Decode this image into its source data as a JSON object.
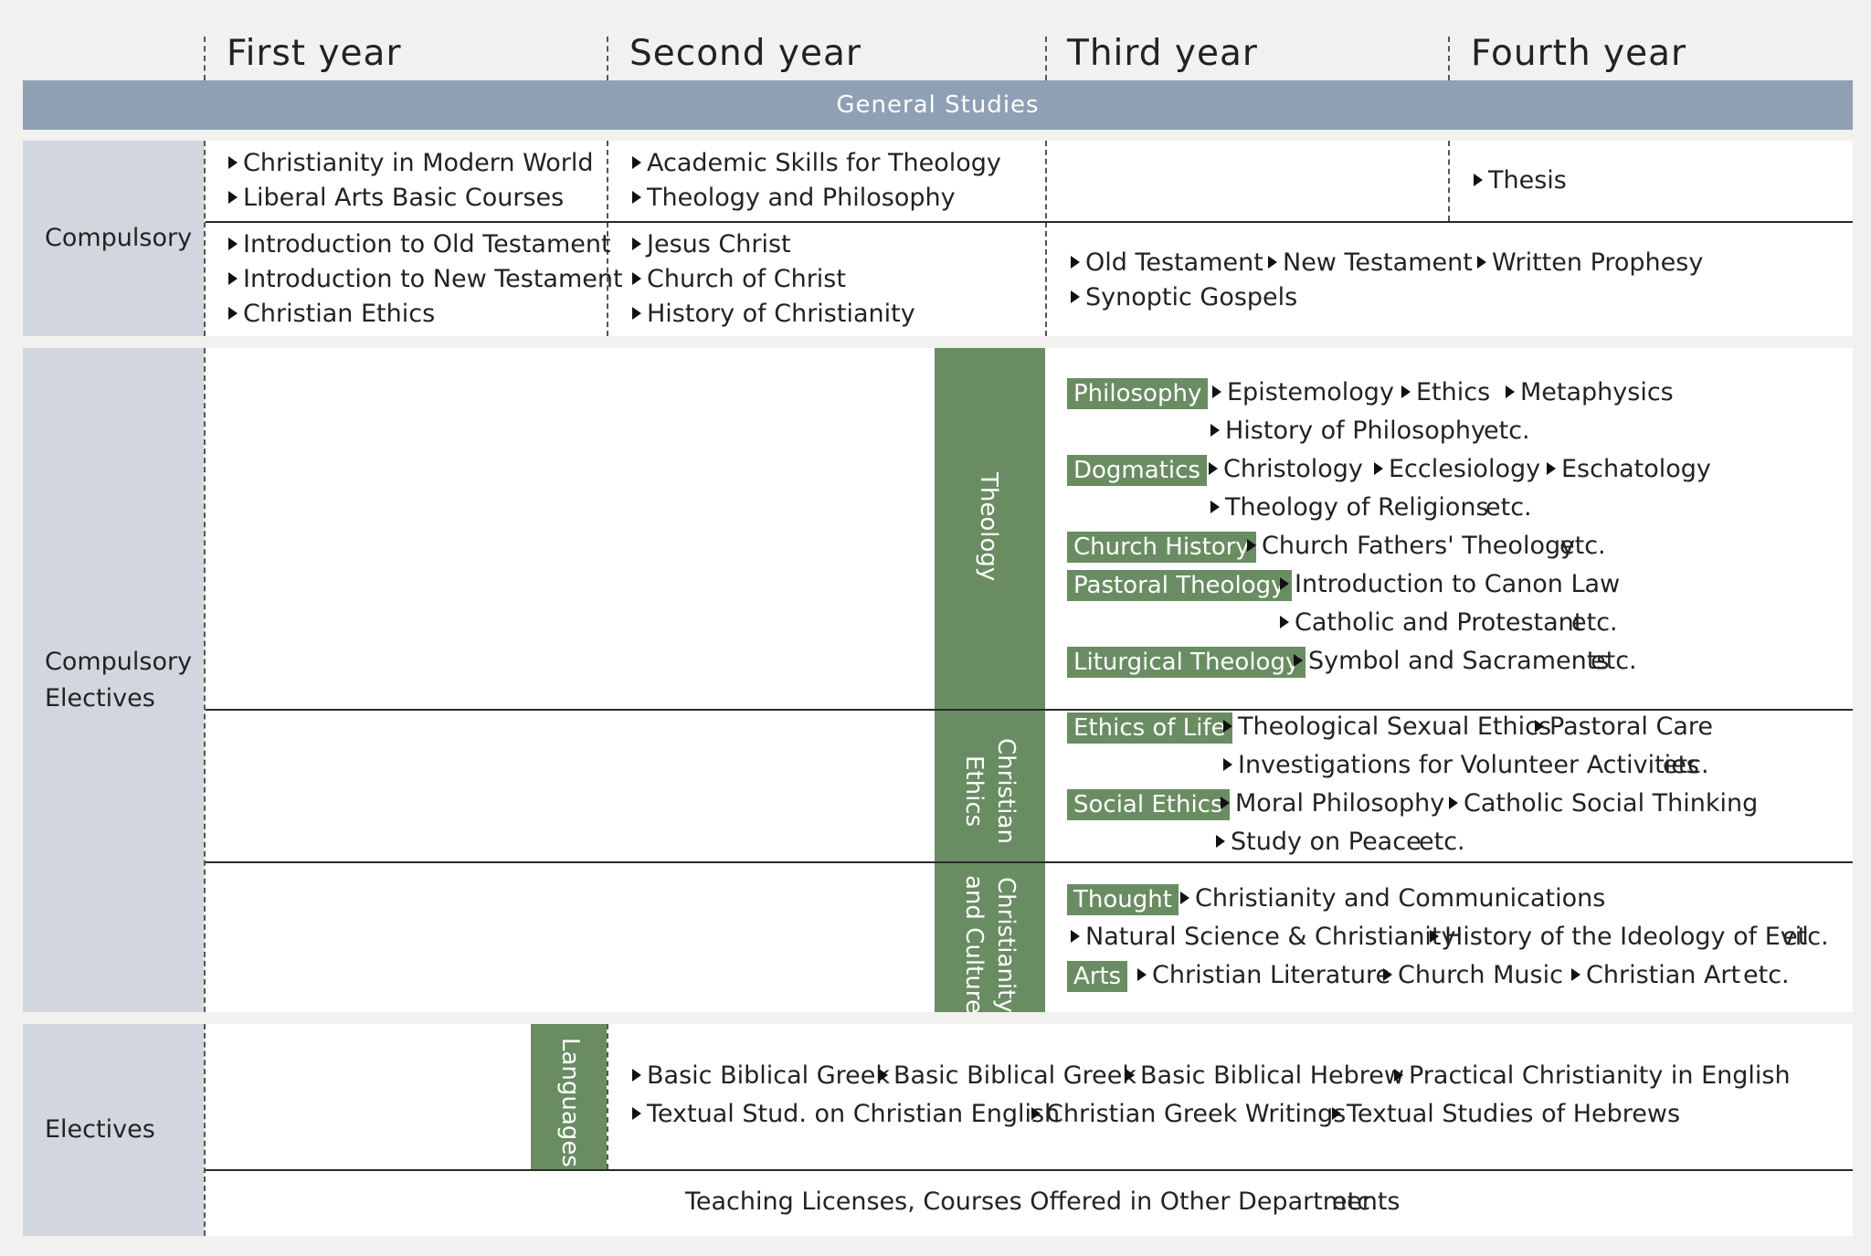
{
  "years": [
    "First year",
    "Second year",
    "Third year",
    "Fourth year"
  ],
  "general_studies": "General Studies",
  "categories": {
    "compulsory": "Compulsory",
    "compulsory_electives": "Compulsory\nElectives",
    "electives": "Electives"
  },
  "compulsory": {
    "row1": {
      "y1": [
        "Christianity in Modern World",
        "Liberal Arts Basic Courses"
      ],
      "y2": [
        "Academic Skills for Theology",
        "Theology and Philosophy"
      ],
      "y4": [
        "Thesis"
      ]
    },
    "row2": {
      "y1": [
        "Introduction to Old Testament",
        "Introduction to New Testament",
        "Christian Ethics"
      ],
      "y2": [
        "Jesus Christ",
        "Church of Christ",
        "History of Christianity"
      ],
      "y34_line1": [
        "Old Testament",
        "New Testament",
        "Written Prophesy"
      ],
      "y34_line2": [
        "Synoptic Gospels"
      ]
    }
  },
  "tracks": {
    "theology": "Theology",
    "christian_ethics": "Christian\nEthics",
    "christianity_culture": "Christianity\nand Culture",
    "languages": "Languages"
  },
  "theology": {
    "philosophy": {
      "tag": "Philosophy",
      "line1": [
        "Epistemology",
        "Ethics",
        "Metaphysics"
      ],
      "line2": [
        "History of Philosophy"
      ]
    },
    "dogmatics": {
      "tag": "Dogmatics",
      "line1": [
        "Christology",
        "Ecclesiology",
        "Eschatology"
      ],
      "line2": [
        "Theology of Religions"
      ]
    },
    "church_history": {
      "tag": "Church History",
      "line1": [
        "Church Fathers' Theology"
      ]
    },
    "pastoral": {
      "tag": "Pastoral Theology",
      "line1": [
        "Introduction to Canon Law"
      ],
      "line2": [
        "Catholic and Protestant"
      ]
    },
    "liturgical": {
      "tag": "Liturgical Theology",
      "line1": [
        "Symbol and Sacraments"
      ]
    }
  },
  "ethics": {
    "life": {
      "tag": "Ethics of Life",
      "line1": [
        "Theological Sexual Ethics",
        "Pastoral Care"
      ],
      "line2": [
        "Investigations for Volunteer Activities"
      ]
    },
    "social": {
      "tag": "Social Ethics",
      "line1": [
        "Moral Philosophy",
        "Catholic Social Thinking"
      ],
      "line2": [
        "Study on Peace"
      ]
    }
  },
  "culture": {
    "thought": {
      "tag": "Thought",
      "line1": [
        "Christianity and Communications"
      ],
      "line2": [
        "Natural Science & Christianity",
        "History of the Ideology of Evil"
      ]
    },
    "arts": {
      "tag": "Arts",
      "line1": [
        "Christian Literature",
        "Church Music",
        "Christian Art"
      ]
    }
  },
  "languages": {
    "line1": [
      "Basic Biblical Greek",
      "Basic Biblical Greek",
      "Basic Biblical Hebrew",
      "Practical Christianity in English"
    ],
    "line2": [
      "Textual Stud. on Christian English",
      "Christian Greek Writings",
      "Textual Studies of Hebrews"
    ]
  },
  "other": "Teaching Licenses, Courses Offered in Other Departments",
  "etc": "etc."
}
